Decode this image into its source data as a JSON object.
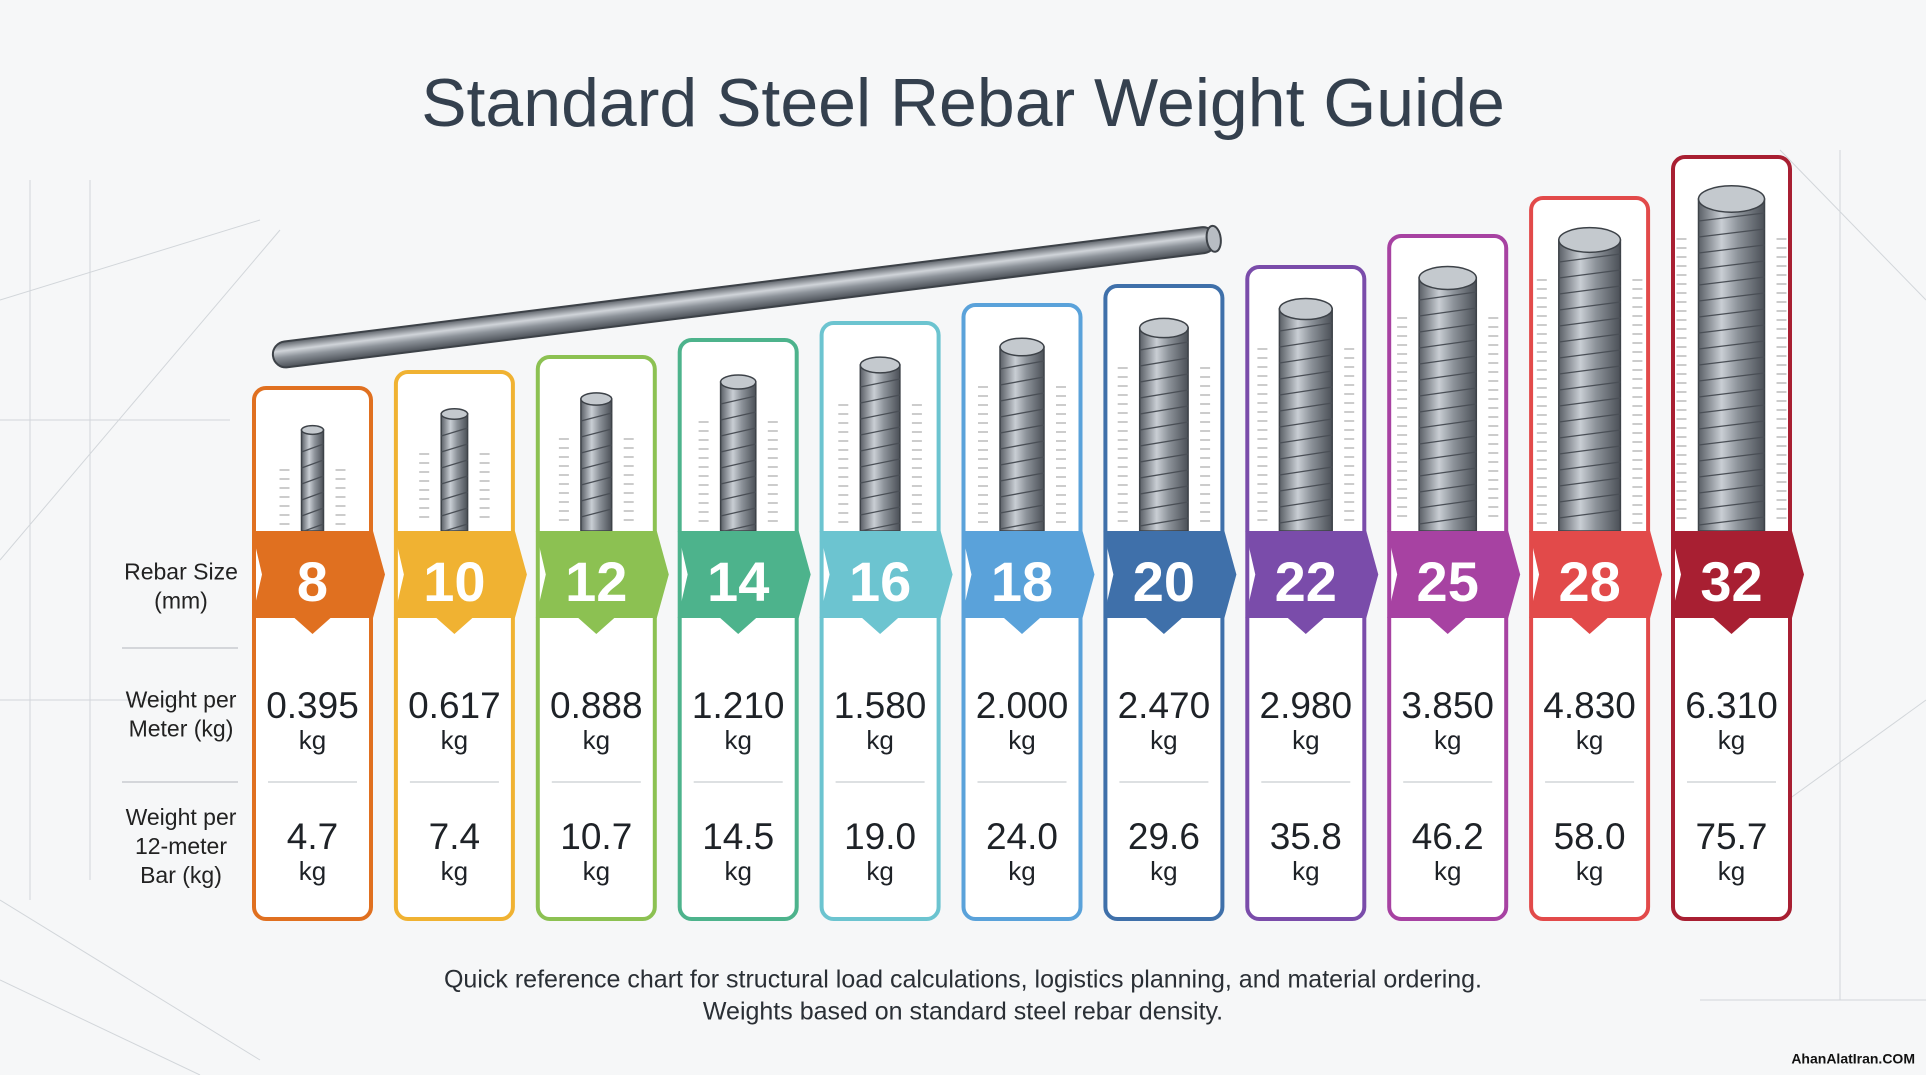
{
  "header": {
    "title": "Standard Steel Rebar Weight Guide"
  },
  "row_labels": {
    "size": [
      "Rebar Size",
      "(mm)"
    ],
    "per_meter": [
      "Weight per",
      "Meter (kg)"
    ],
    "per_bar": [
      "Weight per",
      "12-meter",
      "Bar (kg)"
    ]
  },
  "unit": "kg",
  "columns": [
    {
      "size": "8",
      "per_meter": "0.395",
      "per_bar": "4.7",
      "color": "#e07020"
    },
    {
      "size": "10",
      "per_meter": "0.617",
      "per_bar": "7.4",
      "color": "#f0b232"
    },
    {
      "size": "12",
      "per_meter": "0.888",
      "per_bar": "10.7",
      "color": "#8cc152"
    },
    {
      "size": "14",
      "per_meter": "1.210",
      "per_bar": "14.5",
      "color": "#4db38c"
    },
    {
      "size": "16",
      "per_meter": "1.580",
      "per_bar": "19.0",
      "color": "#6cc4d0"
    },
    {
      "size": "18",
      "per_meter": "2.000",
      "per_bar": "24.0",
      "color": "#5aa2da"
    },
    {
      "size": "20",
      "per_meter": "2.470",
      "per_bar": "29.6",
      "color": "#3f70aa"
    },
    {
      "size": "22",
      "per_meter": "2.980",
      "per_bar": "35.8",
      "color": "#7a4caa"
    },
    {
      "size": "25",
      "per_meter": "3.850",
      "per_bar": "46.2",
      "color": "#a742a2"
    },
    {
      "size": "28",
      "per_meter": "4.830",
      "per_bar": "58.0",
      "color": "#e24a4a"
    },
    {
      "size": "32",
      "per_meter": "6.310",
      "per_bar": "75.7",
      "color": "#a81f32"
    }
  ],
  "footer": [
    "Quick reference chart for structural load calculations, logistics planning, and material ordering.",
    "Weights based on standard steel rebar density."
  ],
  "watermark": "AhanAlatIran.COM"
}
